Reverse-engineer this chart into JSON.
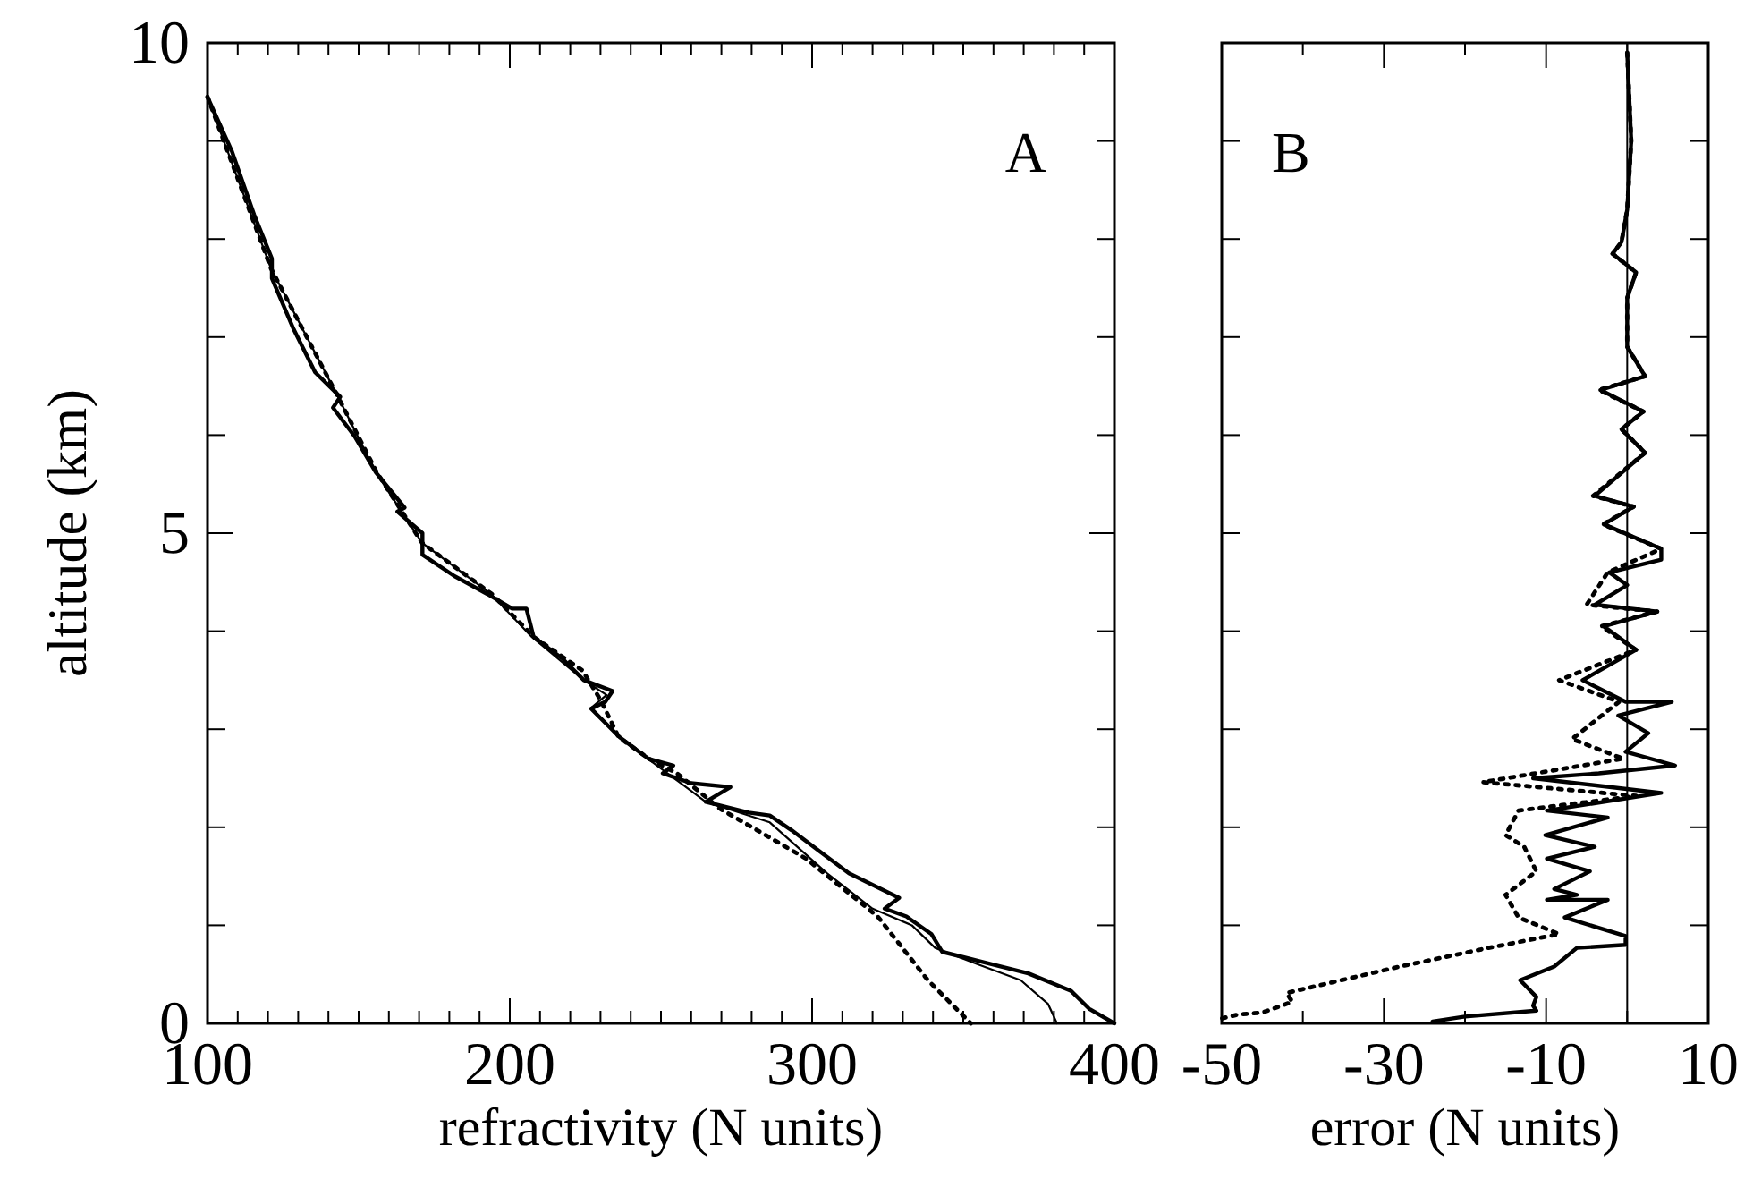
{
  "chart_data": [
    {
      "type": "line",
      "xlabel": "refractivity (N units)",
      "ylabel": "altitude (km)",
      "annotations": [
        "A"
      ],
      "xlim": [
        100,
        400
      ],
      "ylim": [
        0,
        10
      ],
      "xticks": [
        100,
        {
          "value": 110,
          "label": null
        },
        {
          "value": 120,
          "label": null
        },
        {
          "value": 130,
          "label": null
        },
        {
          "value": 140,
          "label": null
        },
        {
          "value": 150,
          "label": null
        },
        {
          "value": 160,
          "label": null
        },
        {
          "value": 170,
          "label": null
        },
        {
          "value": 180,
          "label": null
        },
        {
          "value": 190,
          "label": null
        },
        200,
        {
          "value": 210,
          "label": null
        },
        {
          "value": 220,
          "label": null
        },
        {
          "value": 230,
          "label": null
        },
        {
          "value": 240,
          "label": null
        },
        {
          "value": 250,
          "label": null
        },
        {
          "value": 260,
          "label": null
        },
        {
          "value": 270,
          "label": null
        },
        {
          "value": 280,
          "label": null
        },
        {
          "value": 290,
          "label": null
        },
        300,
        {
          "value": 310,
          "label": null
        },
        {
          "value": 320,
          "label": null
        },
        {
          "value": 330,
          "label": null
        },
        {
          "value": 340,
          "label": null
        },
        {
          "value": 350,
          "label": null
        },
        {
          "value": 360,
          "label": null
        },
        {
          "value": 370,
          "label": null
        },
        {
          "value": 380,
          "label": null
        },
        {
          "value": 390,
          "label": null
        },
        400
      ],
      "yticks": [
        0,
        {
          "value": 1,
          "label": null
        },
        {
          "value": 2,
          "label": null
        },
        {
          "value": 3,
          "label": null
        },
        {
          "value": 4,
          "label": null
        },
        5,
        {
          "value": 6,
          "label": null
        },
        {
          "value": 7,
          "label": null
        },
        {
          "value": 8,
          "label": null
        },
        {
          "value": 9,
          "label": null
        },
        10
      ],
      "series": [
        {
          "color": "#000000",
          "line_style": "solid",
          "x": [
            100,
            108,
            115.4,
            121.3,
            121.3,
            128.5,
            135.6,
            143.9,
            141.5,
            148.6,
            155.7,
            165.2,
            162.8,
            171.1,
            171.1,
            181.8,
            192.5,
            200.8,
            205.5,
            207.9,
            217.4,
            224.5,
            234,
            231.6,
            226.9,
            236.3,
            245.8,
            254.1,
            250.6,
            260,
            273,
            264.8,
            279,
            286,
            293.2,
            302.7,
            312.2,
            328.8,
            324,
            331.2,
            339.5,
            343,
            357.3,
            371.5,
            385.7,
            391.6,
            400
          ],
          "values": [
            9.45,
            8.9,
            8.25,
            7.8,
            7.6,
            7.08,
            6.64,
            6.39,
            6.28,
            5.99,
            5.62,
            5.26,
            5.22,
            5.0,
            4.78,
            4.56,
            4.38,
            4.23,
            4.23,
            3.94,
            3.72,
            3.5,
            3.39,
            3.28,
            3.21,
            2.92,
            2.7,
            2.63,
            2.55,
            2.45,
            2.41,
            2.26,
            2.15,
            2.12,
            1.97,
            1.75,
            1.53,
            1.28,
            1.17,
            1.09,
            0.91,
            0.73,
            0.62,
            0.51,
            0.33,
            0.15,
            0
          ]
        },
        {
          "color": "#000000",
          "line_style": "solid",
          "x": [
            100,
            121,
            143,
            155.7,
            171,
            193.7,
            207,
            224.5,
            232,
            227,
            236,
            250,
            264.8,
            286,
            305,
            320,
            333,
            340.7,
            355,
            369,
            378,
            381
          ],
          "values": [
            9.45,
            7.7,
            6.4,
            5.62,
            4.9,
            4.38,
            3.95,
            3.5,
            3.35,
            3.22,
            2.92,
            2.6,
            2.26,
            2.05,
            1.53,
            1.17,
            1.0,
            0.77,
            0.6,
            0.44,
            0.2,
            0
          ]
        },
        {
          "color": "#000000",
          "line_style": "dotted",
          "x": [
            100,
            121,
            143,
            156,
            171,
            194,
            208,
            224,
            230,
            236,
            246,
            255.3,
            269.5,
            298,
            321.7,
            338.3,
            352.5
          ],
          "values": [
            9.45,
            7.7,
            6.4,
            5.62,
            4.9,
            4.38,
            3.94,
            3.6,
            3.3,
            2.92,
            2.7,
            2.55,
            2.19,
            1.68,
            1.09,
            0.44,
            0
          ]
        }
      ]
    },
    {
      "type": "line",
      "xlabel": "error (N units)",
      "annotations": [
        "B"
      ],
      "xlim": [
        -50,
        10
      ],
      "ylim": [
        0,
        10
      ],
      "tick_labels": "x",
      "xticks": [
        -50,
        {
          "value": -40,
          "label": null
        },
        -30,
        {
          "value": -20,
          "label": null
        },
        -10,
        {
          "value": 0,
          "label": null
        },
        10
      ],
      "yticks": [
        {
          "value": 0,
          "label": null
        },
        {
          "value": 1,
          "label": null
        },
        {
          "value": 2,
          "label": null
        },
        {
          "value": 3,
          "label": null
        },
        {
          "value": 4,
          "label": null
        },
        {
          "value": 5,
          "label": null
        },
        {
          "value": 6,
          "label": null
        },
        {
          "value": 7,
          "label": null
        },
        {
          "value": 8,
          "label": null
        },
        {
          "value": 9,
          "label": null
        },
        {
          "value": 10,
          "label": null
        }
      ],
      "ref_lines": [
        {
          "axis": "x",
          "value": 0,
          "color": "#000000"
        }
      ],
      "series": [
        {
          "color": "#000000",
          "line_style": "solid",
          "x": [
            0,
            0.5,
            0,
            -0.7,
            -1.8,
            1.1,
            0,
            0,
            2.2,
            -3.3,
            2,
            -0.7,
            2.2,
            -4,
            0.8,
            -2.9,
            4.2,
            4.2,
            -2.2,
            0,
            -4,
            3.7,
            -2.9,
            1.1,
            -5.5,
            -0.2,
            5.5,
            -1.1,
            2.6,
            -0.2,
            5.9,
            -3.5,
            -11.6,
            4.2,
            -9.9,
            -2.4,
            -10.1,
            -4,
            -9.9,
            -4.6,
            -9,
            -6.2,
            -9.9,
            -2.4,
            -7.7,
            -0.2,
            -0.2,
            -6.2,
            -9,
            -13.2,
            -11.2,
            -11.6,
            -11.2,
            -20,
            -24
          ],
          "values": [
            9.9,
            9,
            8.3,
            7.97,
            7.85,
            7.66,
            7.4,
            6.9,
            6.6,
            6.46,
            6.24,
            6.06,
            5.82,
            5.38,
            5.27,
            5.09,
            4.84,
            4.73,
            4.6,
            4.47,
            4.27,
            4.2,
            4.05,
            3.81,
            3.5,
            3.28,
            3.28,
            3.14,
            2.96,
            2.77,
            2.63,
            2.55,
            2.5,
            2.35,
            2.17,
            2.1,
            1.92,
            1.8,
            1.68,
            1.55,
            1.37,
            1.31,
            1.26,
            1.26,
            1.08,
            0.89,
            0.8,
            0.77,
            0.58,
            0.44,
            0.27,
            0.18,
            0.13,
            0.07,
            0.02
          ]
        },
        {
          "color": "#000000",
          "line_style": "dotted",
          "x": [
            0,
            0.5,
            0,
            -0.7,
            -1.8,
            1.1,
            0,
            0,
            2.2,
            -3.5,
            2,
            -0.7,
            2.2,
            -4.2,
            0.8,
            -3,
            4.2,
            -2.4,
            -5,
            3.7,
            -3.2,
            1.1,
            -8.4,
            -1,
            -6.8,
            -0.5,
            -17.8,
            1.1,
            -13.4,
            -15,
            -12.7,
            -11.2,
            -15,
            -13.4,
            -8.4,
            -17.1,
            -28,
            -42,
            -41.3,
            -45,
            -48,
            -50
          ],
          "values": [
            9.9,
            9,
            8.3,
            7.97,
            7.85,
            7.66,
            7.4,
            6.9,
            6.6,
            6.46,
            6.24,
            6.06,
            5.82,
            5.38,
            5.27,
            5.09,
            4.84,
            4.6,
            4.27,
            4.2,
            4.05,
            3.81,
            3.5,
            3.28,
            2.9,
            2.7,
            2.46,
            2.32,
            2.17,
            1.92,
            1.8,
            1.55,
            1.31,
            1.08,
            0.91,
            0.77,
            0.58,
            0.31,
            0.22,
            0.11,
            0.09,
            0.05
          ]
        }
      ]
    }
  ]
}
